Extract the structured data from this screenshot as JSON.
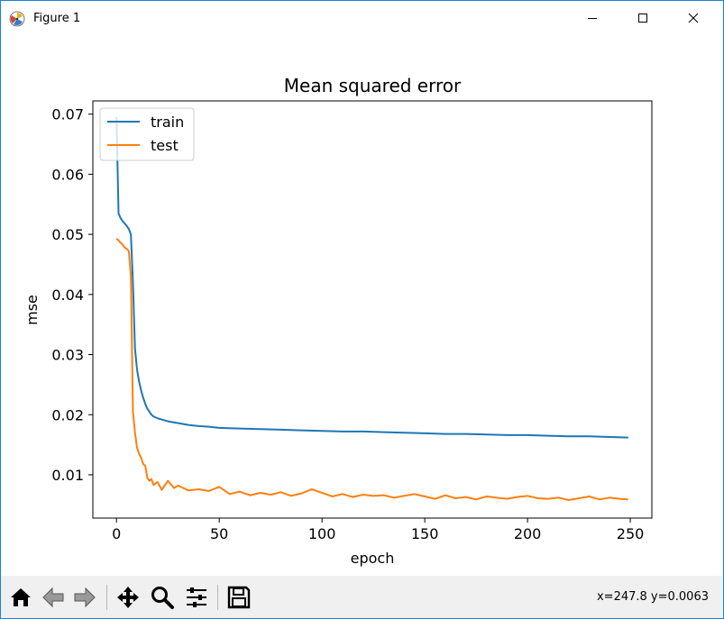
{
  "window": {
    "title": "Figure 1",
    "buttons": {
      "minimize": "minimize-icon",
      "maximize": "maximize-icon",
      "close": "close-icon"
    }
  },
  "toolbar": {
    "buttons": [
      {
        "name": "home-button",
        "icon": "home-icon"
      },
      {
        "name": "back-button",
        "icon": "back-arrow-icon"
      },
      {
        "name": "forward-button",
        "icon": "forward-arrow-icon"
      },
      {
        "name": "pan-button",
        "icon": "pan-icon"
      },
      {
        "name": "zoom-button",
        "icon": "zoom-icon"
      },
      {
        "name": "configure-subplots-button",
        "icon": "subplots-icon"
      },
      {
        "name": "save-button",
        "icon": "save-icon"
      }
    ],
    "coords": "x=247.8 y=0.0063"
  },
  "chart_data": {
    "type": "line",
    "title": "Mean squared error",
    "xlabel": "epoch",
    "ylabel": "mse",
    "xlim": [
      -11.5,
      260.5
    ],
    "ylim": [
      0.0028,
      0.0722
    ],
    "xticks": [
      0,
      50,
      100,
      150,
      200,
      250
    ],
    "xtick_labels": [
      "0",
      "50",
      "100",
      "150",
      "200",
      "250"
    ],
    "yticks": [
      0.01,
      0.02,
      0.03,
      0.04,
      0.05,
      0.06,
      0.07
    ],
    "ytick_labels": [
      "0.01",
      "0.02",
      "0.03",
      "0.04",
      "0.05",
      "0.06",
      "0.07"
    ],
    "legend": {
      "position": "upper-left",
      "entries": [
        "train",
        "test"
      ]
    },
    "grid": false,
    "series": [
      {
        "name": "train",
        "color": "#1f77b4",
        "x": [
          0,
          1,
          2,
          3,
          4,
          5,
          6,
          7,
          8,
          9,
          10,
          11,
          12,
          13,
          14,
          15,
          16,
          17,
          18,
          20,
          22,
          25,
          30,
          35,
          40,
          45,
          50,
          60,
          70,
          80,
          90,
          100,
          110,
          120,
          130,
          140,
          150,
          160,
          170,
          180,
          190,
          200,
          210,
          220,
          230,
          240,
          249
        ],
        "y": [
          0.0695,
          0.0535,
          0.0527,
          0.0522,
          0.0518,
          0.0514,
          0.0509,
          0.05,
          0.042,
          0.031,
          0.0275,
          0.0255,
          0.024,
          0.0228,
          0.0218,
          0.021,
          0.0205,
          0.02,
          0.0197,
          0.0194,
          0.0192,
          0.0189,
          0.0186,
          0.0183,
          0.0181,
          0.018,
          0.0178,
          0.0177,
          0.0176,
          0.0175,
          0.0174,
          0.0173,
          0.0172,
          0.0172,
          0.0171,
          0.017,
          0.0169,
          0.0168,
          0.0168,
          0.0167,
          0.0166,
          0.0166,
          0.0165,
          0.0164,
          0.0164,
          0.0163,
          0.0162
        ]
      },
      {
        "name": "test",
        "color": "#ff7f0e",
        "x": [
          0,
          1,
          2,
          3,
          4,
          5,
          6,
          7,
          8,
          9,
          10,
          11,
          12,
          13,
          14,
          15,
          16,
          17,
          18,
          20,
          22,
          25,
          28,
          30,
          35,
          40,
          45,
          50,
          55,
          60,
          65,
          70,
          75,
          80,
          85,
          90,
          95,
          100,
          105,
          110,
          115,
          120,
          125,
          130,
          135,
          140,
          145,
          150,
          155,
          160,
          165,
          170,
          175,
          180,
          185,
          190,
          195,
          200,
          205,
          210,
          215,
          220,
          225,
          230,
          235,
          240,
          245,
          249
        ],
        "y": [
          0.0493,
          0.049,
          0.0486,
          0.0483,
          0.0478,
          0.0476,
          0.0472,
          0.043,
          0.0205,
          0.017,
          0.0145,
          0.0135,
          0.0128,
          0.0118,
          0.0115,
          0.0095,
          0.009,
          0.0093,
          0.0083,
          0.0088,
          0.0075,
          0.009,
          0.0078,
          0.0082,
          0.0074,
          0.0076,
          0.0073,
          0.008,
          0.0068,
          0.0072,
          0.0066,
          0.007,
          0.0067,
          0.0071,
          0.0065,
          0.0069,
          0.0076,
          0.007,
          0.0064,
          0.0068,
          0.0063,
          0.0067,
          0.0065,
          0.0066,
          0.0062,
          0.0065,
          0.0068,
          0.0064,
          0.006,
          0.0066,
          0.0061,
          0.0063,
          0.0059,
          0.0064,
          0.0062,
          0.006,
          0.0063,
          0.0065,
          0.0061,
          0.006,
          0.0062,
          0.0058,
          0.0061,
          0.0064,
          0.0059,
          0.0062,
          0.006,
          0.0059
        ]
      }
    ]
  }
}
